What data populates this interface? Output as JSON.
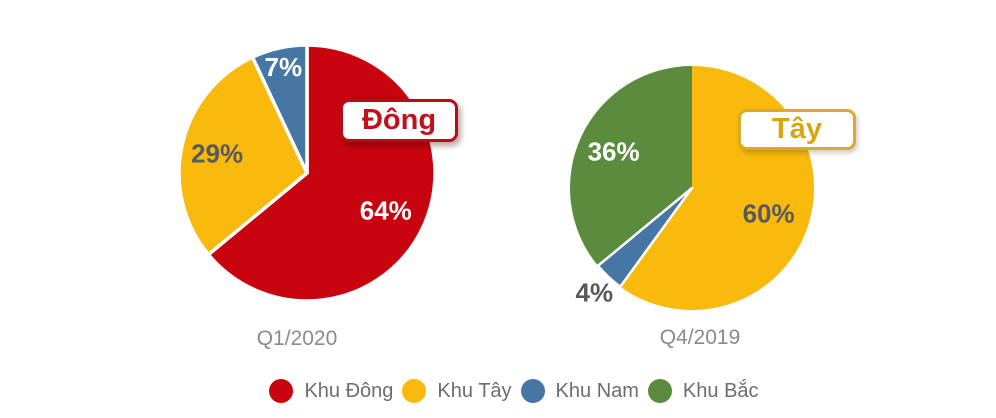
{
  "page": {
    "background": "#ffffff"
  },
  "chart_data": [
    {
      "type": "pie",
      "title": "Q1/2020",
      "callout": {
        "text": "Đông",
        "text_color": "#c3111c",
        "border_color": "#b30e1b"
      },
      "start_angle_deg": 0,
      "direction": "clockwise",
      "slices": [
        {
          "label": "Khu Đông",
          "value": 64,
          "text": "64%",
          "color": "#c8040e"
        },
        {
          "label": "Khu Tây",
          "value": 29,
          "text": "29%",
          "color": "#f9b90d"
        },
        {
          "label": "Khu Nam",
          "value": 7,
          "text": "7%",
          "color": "#4677a4"
        }
      ]
    },
    {
      "type": "pie",
      "title": "Q4/2019",
      "callout": {
        "text": "Tây",
        "text_color": "#d8a60d",
        "border_color": "#dbaa28"
      },
      "start_angle_deg": 0,
      "direction": "clockwise",
      "slices": [
        {
          "label": "Khu Tây",
          "value": 60,
          "text": "60%",
          "color": "#f9b90d"
        },
        {
          "label": "Khu Nam",
          "value": 4,
          "text": "4%",
          "color": "#4677a4"
        },
        {
          "label": "Khu Bắc",
          "value": 36,
          "text": "36%",
          "color": "#5b8b3d"
        }
      ]
    }
  ],
  "legend": {
    "items": [
      {
        "label": "Khu Đông",
        "color": "#c8040e"
      },
      {
        "label": "Khu Tây",
        "color": "#f9b90d"
      },
      {
        "label": "Khu Nam",
        "color": "#4677a4"
      },
      {
        "label": "Khu Bắc",
        "color": "#5b8b3d"
      }
    ]
  },
  "text_colors": {
    "percent_on_dark": "#ffffff",
    "percent_on_light": "#58595b",
    "caption": "#8b8b8b",
    "legend": "#6d6d6d"
  }
}
